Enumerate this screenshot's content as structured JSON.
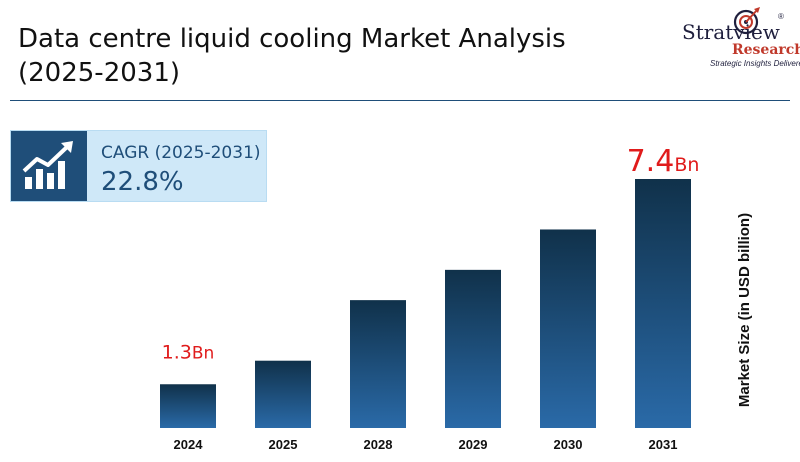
{
  "header": {
    "title_line1": "Data centre liquid cooling Market Analysis",
    "title_line2": "(2025-2031)"
  },
  "logo": {
    "brand": "Stratview",
    "registered": "®",
    "research": "Research",
    "tagline": "Strategic Insights Delivered"
  },
  "cagr": {
    "label": "CAGR (2025-2031)",
    "value": "22.8%",
    "icon": "growth-chart-icon"
  },
  "colors": {
    "bar_top": "#10314a",
    "bar_bottom": "#2a6aa8",
    "annotation": "#e01b1b",
    "rule": "#1f4e79",
    "cagr_bg": "#cfe8f8"
  },
  "chart_data": {
    "type": "bar",
    "categories": [
      "2024",
      "2025",
      "2028",
      "2029",
      "2030",
      "2031"
    ],
    "values": [
      1.3,
      2.0,
      3.8,
      4.7,
      5.9,
      7.4
    ],
    "ylabel": "Market Size (in USD billion)",
    "ylim": [
      0,
      7.4
    ],
    "grid": false,
    "annotations": [
      {
        "index": 0,
        "value": "1.3",
        "unit": "Bn"
      },
      {
        "index": 5,
        "value": "7.4",
        "unit": "Bn"
      }
    ]
  }
}
